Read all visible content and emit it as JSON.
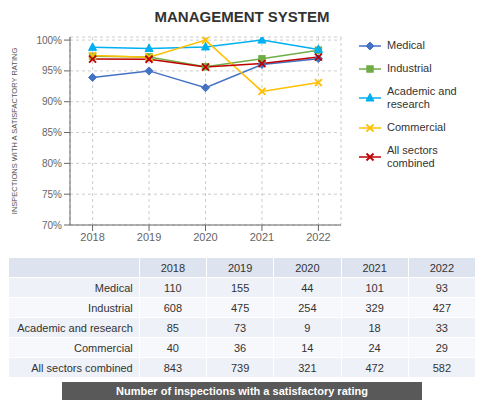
{
  "chart_data": {
    "type": "line",
    "title": "MANAGEMENT SYSTEM",
    "x": [
      2018,
      2019,
      2020,
      2021,
      2022
    ],
    "xlim": [
      2017.6,
      2022.4
    ],
    "xticks": [
      2018,
      2019,
      2020,
      2021,
      2022
    ],
    "y_label": "INSPECTIONS  WITH A SATISFACTORY RATING",
    "ylim": [
      0.7,
      1.005
    ],
    "yticks": [
      {
        "value": 0.7,
        "label": "70%"
      },
      {
        "value": 0.75,
        "label": "75%"
      },
      {
        "value": 0.8,
        "label": "80%"
      },
      {
        "value": 0.85,
        "label": "85%"
      },
      {
        "value": 0.9,
        "label": "90%"
      },
      {
        "value": 0.95,
        "label": "95%"
      },
      {
        "value": 1.0,
        "label": "100%"
      }
    ],
    "grid": true,
    "legend": "right",
    "series": [
      {
        "name": "Medical",
        "color": "#4472C4",
        "marker": "diamond",
        "values": [
          0.9394,
          0.95,
          0.9227,
          0.9604,
          0.9699
        ]
      },
      {
        "name": "Industrial",
        "color": "#70AD47",
        "marker": "square",
        "values": [
          0.9738,
          0.9727,
          0.9567,
          0.9696,
          0.9836
        ]
      },
      {
        "name": "Academic and\nresearch",
        "color": "#00B0F0",
        "marker": "triangle",
        "values": [
          0.9882,
          0.9863,
          0.9889,
          1.0,
          0.9848
        ]
      },
      {
        "name": "Commercial",
        "color": "#FFC000",
        "marker": "x",
        "values": [
          0.975,
          0.9722,
          1.0,
          0.9167,
          0.931
        ]
      },
      {
        "name": "All sectors\ncombined",
        "color": "#C00000",
        "marker": "x",
        "values": [
          0.9692,
          0.9689,
          0.9563,
          0.9619,
          0.9725
        ]
      }
    ],
    "table": {
      "columns": [
        "2018",
        "2019",
        "2020",
        "2021",
        "2022"
      ],
      "rows": [
        {
          "label": "Medical",
          "values": [
            110,
            155,
            44,
            101,
            93
          ]
        },
        {
          "label": "Industrial",
          "values": [
            608,
            475,
            254,
            329,
            427
          ]
        },
        {
          "label": "Academic and research",
          "values": [
            85,
            73,
            9,
            18,
            33
          ]
        },
        {
          "label": "Commercial",
          "values": [
            40,
            36,
            14,
            24,
            29
          ]
        },
        {
          "label": "All sectors combined",
          "values": [
            843,
            739,
            321,
            472,
            582
          ]
        }
      ],
      "caption": "Number of inspections with a satisfactory rating"
    }
  }
}
